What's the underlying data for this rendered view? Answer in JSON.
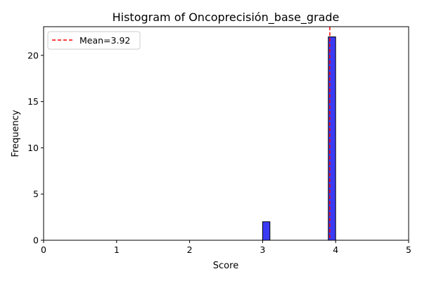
{
  "chart_data": {
    "type": "bar",
    "title": "Histogram of Oncoprecisión_base_grade",
    "xlabel": "Score",
    "ylabel": "Frequency",
    "xlim": [
      0,
      5
    ],
    "ylim": [
      0,
      23.1
    ],
    "xticks": [
      "0",
      "1",
      "2",
      "3",
      "4",
      "5"
    ],
    "yticks": [
      "0",
      "5",
      "10",
      "15",
      "20"
    ],
    "grid": false,
    "legend_position": "top-left",
    "bins": [
      {
        "start": 3.0,
        "end": 3.1,
        "count": 2
      },
      {
        "start": 3.1,
        "end": 3.2,
        "count": 0
      },
      {
        "start": 3.2,
        "end": 3.3,
        "count": 0
      },
      {
        "start": 3.3,
        "end": 3.4,
        "count": 0
      },
      {
        "start": 3.4,
        "end": 3.5,
        "count": 0
      },
      {
        "start": 3.5,
        "end": 3.6,
        "count": 0
      },
      {
        "start": 3.6,
        "end": 3.7,
        "count": 0
      },
      {
        "start": 3.7,
        "end": 3.8,
        "count": 0
      },
      {
        "start": 3.8,
        "end": 3.9,
        "count": 0
      },
      {
        "start": 3.9,
        "end": 4.0,
        "count": 22
      }
    ],
    "bar_color": "#3b3bf5",
    "bar_edge_color": "#000000",
    "mean": {
      "value": 3.92,
      "label": "Mean=3.92",
      "color": "#ff0000",
      "style": "dashed"
    }
  }
}
